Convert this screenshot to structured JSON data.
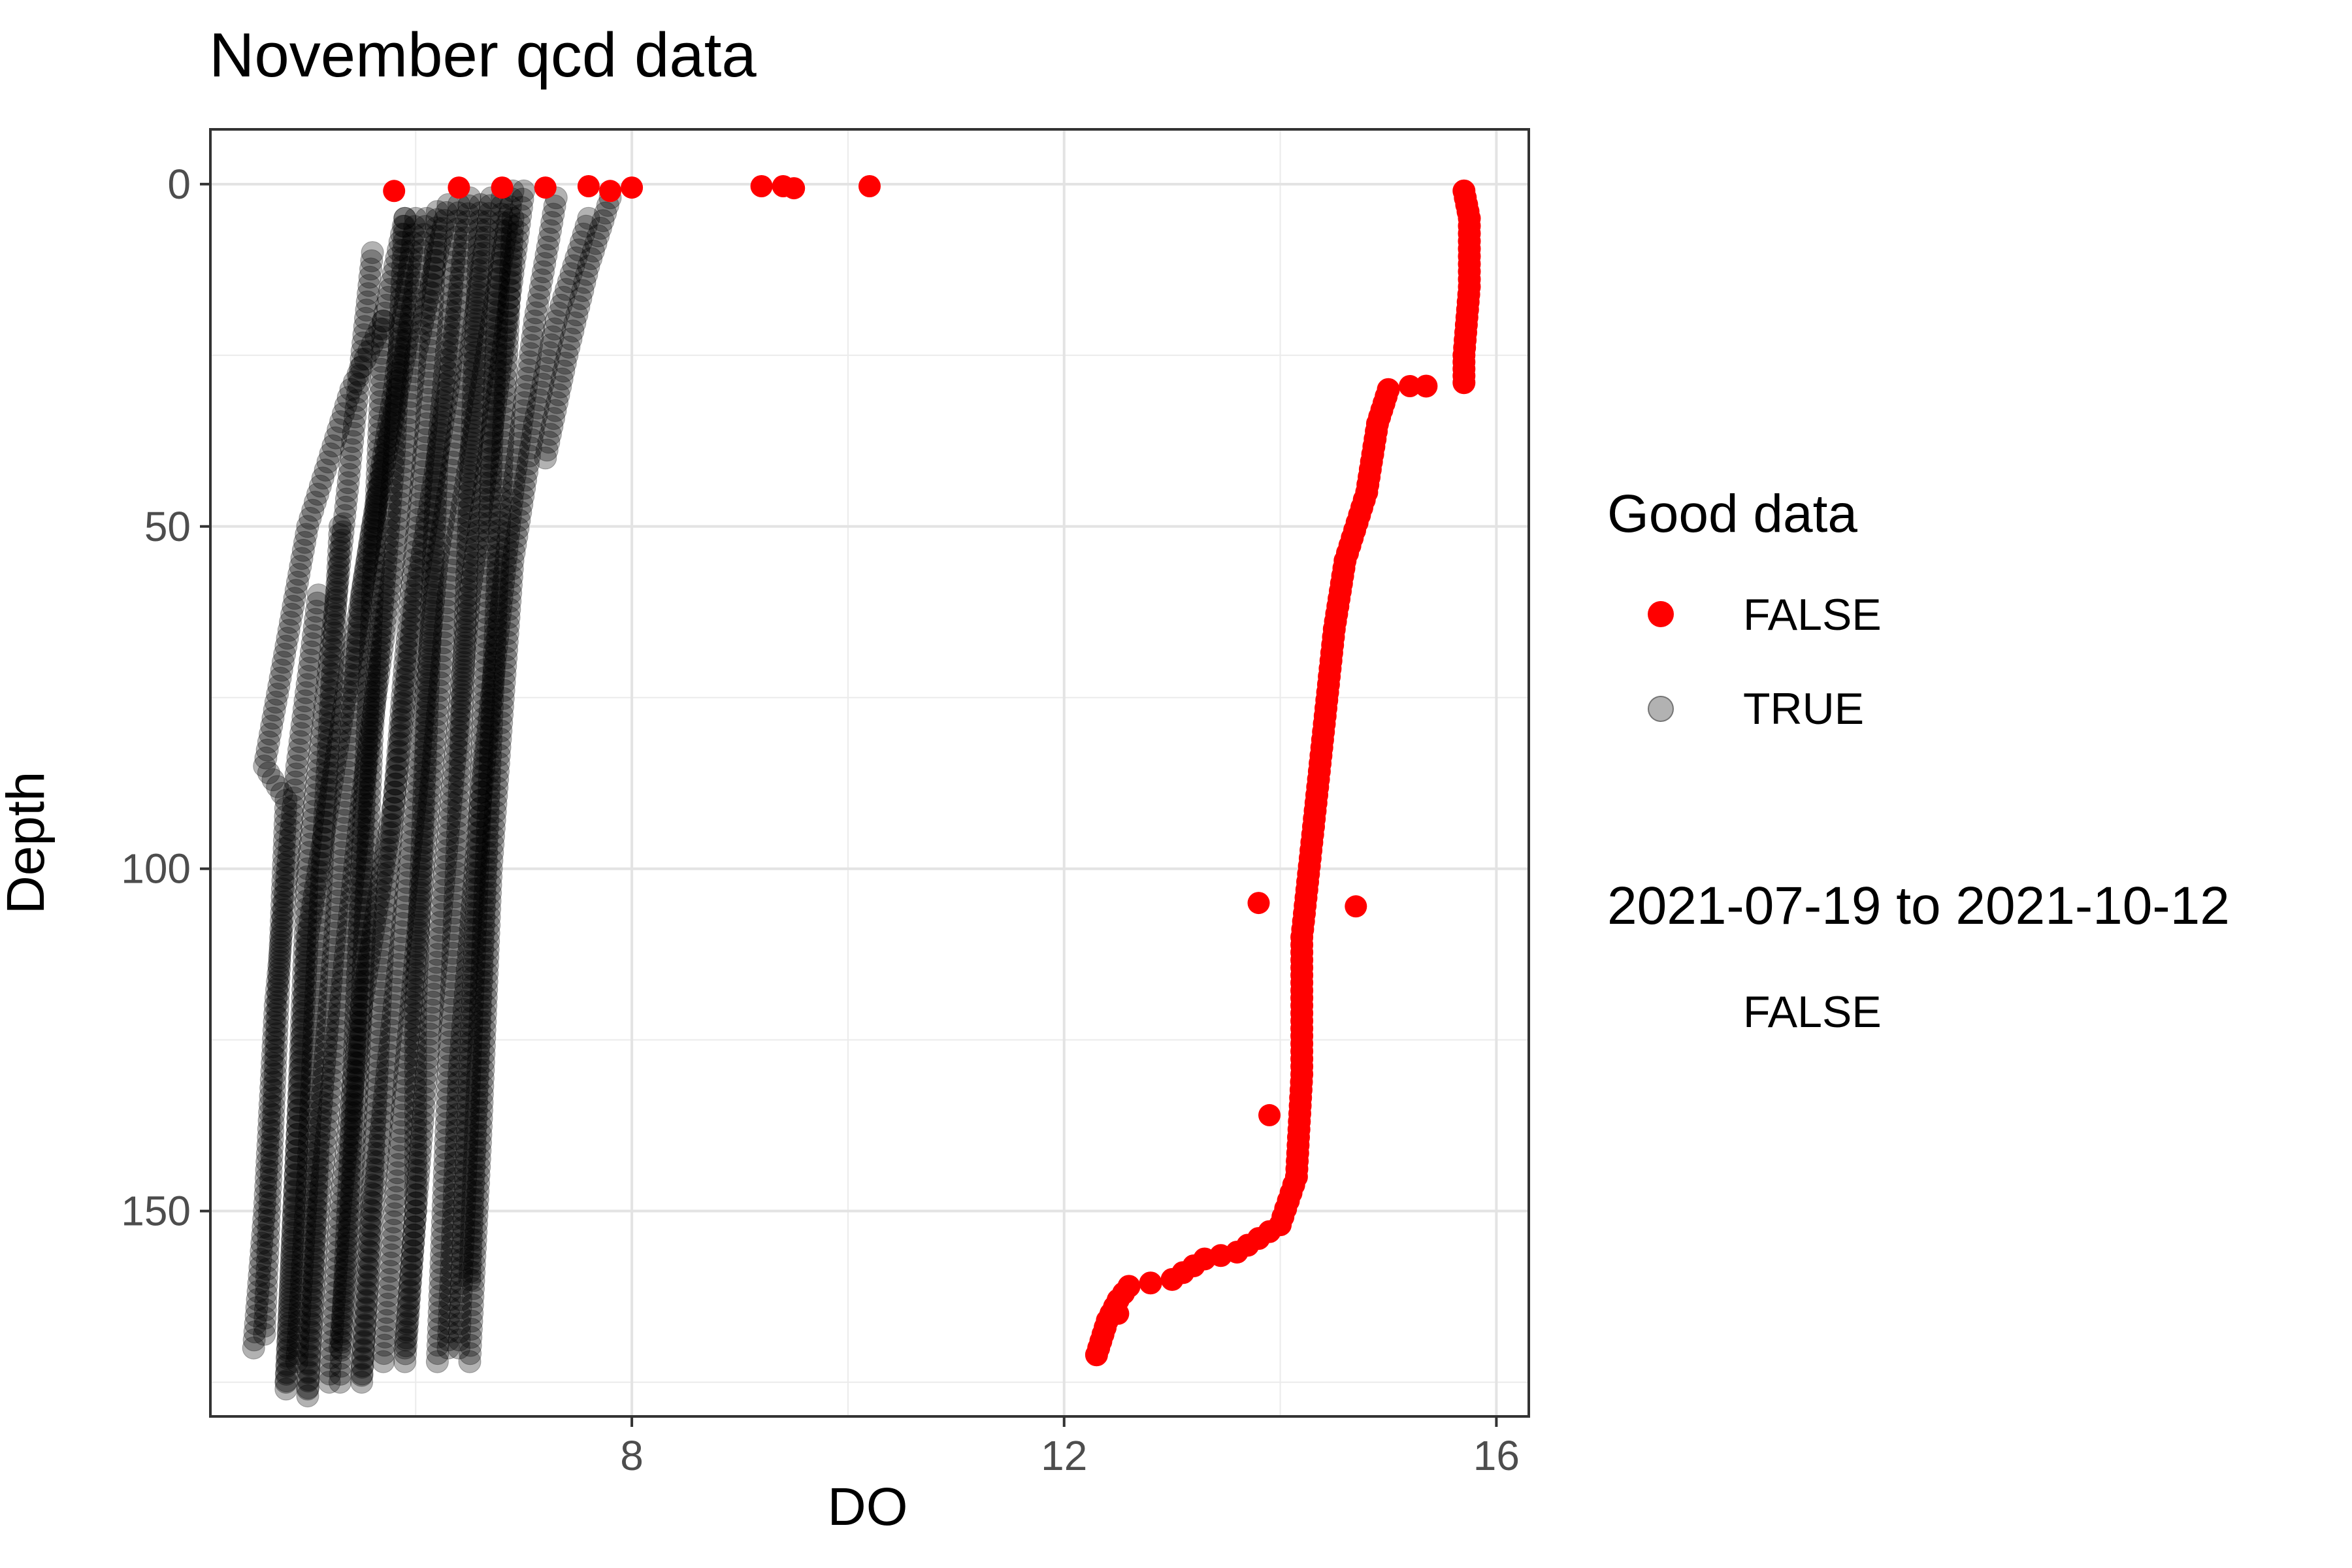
{
  "chart_data": {
    "type": "scatter",
    "title": "November qcd data",
    "xlabel": "DO",
    "ylabel": "Depth",
    "x_ticks": [
      8,
      12,
      16
    ],
    "y_ticks": [
      0,
      50,
      100,
      150
    ],
    "xlim": [
      4.1,
      16.3
    ],
    "ylim": [
      180,
      -8
    ],
    "y_reversed": true,
    "grid": true,
    "legend_position": "right",
    "legends": [
      {
        "title": "Good data",
        "entries": [
          {
            "label": "FALSE",
            "color": "#ff0000"
          },
          {
            "label": "TRUE",
            "color": "#000000",
            "alpha": 0.3
          }
        ]
      },
      {
        "title": "2021-07-19 to 2021-10-12",
        "entries": [
          {
            "label": "FALSE"
          }
        ]
      }
    ],
    "series": [
      {
        "name": "TRUE",
        "color": "#000000",
        "alpha": 0.3,
        "profiles": [
          {
            "x": [
              5.9,
              5.7,
              5.4,
              5.0,
              4.6,
              4.8,
              4.7,
              4.6
            ],
            "y": [
              5,
              20,
              30,
              50,
              85,
              90,
              130,
              168
            ]
          },
          {
            "x": [
              6.1,
              5.9,
              5.6,
              5.3,
              5.0,
              4.9,
              4.8
            ],
            "y": [
              5,
              25,
              50,
              80,
              110,
              140,
              175
            ]
          },
          {
            "x": [
              6.3,
              6.0,
              5.8,
              5.5,
              5.3,
              5.1,
              5.0
            ],
            "y": [
              3,
              25,
              55,
              90,
              120,
              150,
              176
            ]
          },
          {
            "x": [
              6.5,
              6.3,
              6.0,
              5.8,
              5.5,
              5.3,
              5.2
            ],
            "y": [
              2,
              30,
              60,
              90,
              120,
              150,
              175
            ]
          },
          {
            "x": [
              6.7,
              6.5,
              6.2,
              6.0,
              5.8,
              5.6,
              5.5
            ],
            "y": [
              2,
              25,
              55,
              90,
              120,
              150,
              174
            ]
          },
          {
            "x": [
              6.9,
              6.6,
              6.3,
              6.1,
              5.9,
              5.7
            ],
            "y": [
              1,
              30,
              60,
              95,
              130,
              172
            ]
          },
          {
            "x": [
              7.0,
              6.8,
              6.5,
              6.3,
              6.1,
              5.9
            ],
            "y": [
              1,
              25,
              60,
              95,
              130,
              170
            ]
          },
          {
            "x": [
              7.3,
              7.1,
              6.9,
              6.6,
              6.4,
              6.3
            ],
            "y": [
              2,
              20,
              45,
              90,
              130,
              170
            ]
          },
          {
            "x": [
              7.6,
              7.3,
              7.1,
              6.9,
              6.7,
              6.6,
              6.5
            ],
            "y": [
              5,
              20,
              35,
              55,
              100,
              140,
              172
            ]
          },
          {
            "x": [
              5.9,
              5.8,
              5.6,
              5.5,
              5.4,
              5.3
            ],
            "y": [
              5,
              40,
              80,
              120,
              150,
              170
            ]
          },
          {
            "x": [
              6.4,
              6.2,
              6.1,
              6.0,
              6.0,
              5.9
            ],
            "y": [
              3,
              40,
              80,
              120,
              150,
              172
            ]
          },
          {
            "x": [
              6.6,
              6.5,
              6.4,
              6.3,
              6.2
            ],
            "y": [
              3,
              45,
              90,
              130,
              172
            ]
          },
          {
            "x": [
              6.8,
              6.7,
              6.6,
              6.5,
              6.4
            ],
            "y": [
              2,
              40,
              90,
              130,
              170
            ]
          },
          {
            "x": [
              5.6,
              5.4,
              5.2,
              5.0,
              4.9,
              4.8
            ],
            "y": [
              10,
              40,
              70,
              100,
              140,
              176
            ]
          },
          {
            "x": [
              6.0,
              5.8,
              5.5,
              5.3,
              5.1,
              5.0
            ],
            "y": [
              5,
              30,
              60,
              100,
              140,
              177
            ]
          },
          {
            "x": [
              6.2,
              6.1,
              5.9,
              5.7,
              5.6,
              5.5
            ],
            "y": [
              4,
              35,
              70,
              110,
              145,
              175
            ]
          },
          {
            "x": [
              5.1,
              4.9,
              4.7,
              4.6,
              4.5
            ],
            "y": [
              60,
              85,
              120,
              150,
              170
            ]
          },
          {
            "x": [
              5.3,
              5.2,
              5.1,
              5.0,
              4.9
            ],
            "y": [
              50,
              80,
              110,
              145,
              172
            ]
          },
          {
            "x": [
              5.7,
              5.6,
              5.5,
              5.4,
              5.3
            ],
            "y": [
              20,
              60,
              100,
              140,
              175
            ]
          },
          {
            "x": [
              6.9,
              6.8,
              6.7,
              6.6,
              6.5
            ],
            "y": [
              5,
              40,
              80,
              120,
              160
            ]
          },
          {
            "x": [
              7.8,
              7.6,
              7.4,
              7.2
            ],
            "y": [
              2,
              12,
              25,
              40
            ]
          }
        ]
      },
      {
        "name": "FALSE",
        "color": "#ff0000",
        "alpha": 1,
        "profiles": [
          {
            "x": [
              15.7,
              15.75,
              15.75,
              15.7,
              15.7,
              15.0,
              14.9,
              14.8,
              14.6,
              14.5,
              14.4,
              14.3,
              14.2,
              14.2,
              14.2,
              14.15,
              14.0,
              13.6,
              13.3,
              13.0,
              12.6,
              12.5,
              12.4,
              12.3
            ],
            "y": [
              1,
              5,
              15,
              25,
              29,
              30,
              35,
              45,
              55,
              65,
              80,
              95,
              110,
              120,
              130,
              145,
              152,
              156,
              157,
              160,
              161,
              163,
              166,
              171
            ]
          }
        ],
        "points": [
          {
            "x": 5.8,
            "y": 1
          },
          {
            "x": 6.4,
            "y": 0.5
          },
          {
            "x": 6.8,
            "y": 0.5
          },
          {
            "x": 7.2,
            "y": 0.5
          },
          {
            "x": 7.6,
            "y": 0.3
          },
          {
            "x": 7.8,
            "y": 1
          },
          {
            "x": 8.0,
            "y": 0.5
          },
          {
            "x": 9.2,
            "y": 0.3
          },
          {
            "x": 9.4,
            "y": 0.3
          },
          {
            "x": 9.5,
            "y": 0.6
          },
          {
            "x": 10.2,
            "y": 0.3
          },
          {
            "x": 13.8,
            "y": 105
          },
          {
            "x": 14.7,
            "y": 105.5
          },
          {
            "x": 13.9,
            "y": 136
          },
          {
            "x": 15.2,
            "y": 29.5
          },
          {
            "x": 12.5,
            "y": 165
          }
        ]
      }
    ]
  }
}
